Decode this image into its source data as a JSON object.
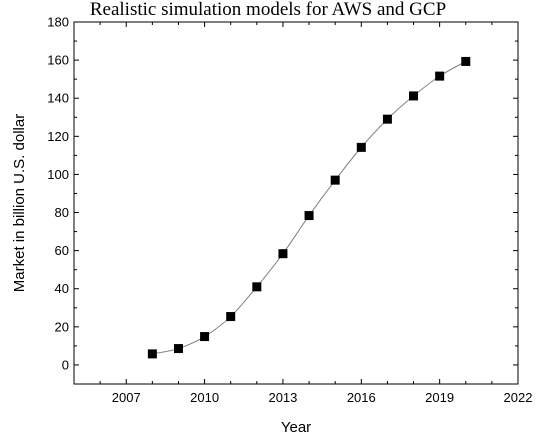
{
  "chart_data": {
    "type": "line",
    "title": "Realistic simulation models for AWS and GCP",
    "xlabel": "Year",
    "ylabel": "Market in billion U.S. dollar",
    "xlim": [
      2005,
      2022
    ],
    "ylim": [
      -10,
      180
    ],
    "x_ticks": [
      "2007",
      "2010",
      "2013",
      "2016",
      "2019",
      "2022"
    ],
    "y_ticks": [
      "0",
      "20",
      "40",
      "60",
      "80",
      "100",
      "120",
      "140",
      "160",
      "180"
    ],
    "grid": false,
    "legend": "none",
    "series": [
      {
        "x": [
          2008,
          2009,
          2010,
          2011,
          2012,
          2013,
          2014,
          2015,
          2016,
          2017,
          2018,
          2019,
          2020
        ],
        "y": [
          5.8,
          8.6,
          14.9,
          25.4,
          41.0,
          58.4,
          78.4,
          97.0,
          114.2,
          129.0,
          141.2,
          151.6,
          159.3
        ],
        "marker": "square",
        "color": "#000000",
        "line_color": "#808080"
      }
    ]
  }
}
